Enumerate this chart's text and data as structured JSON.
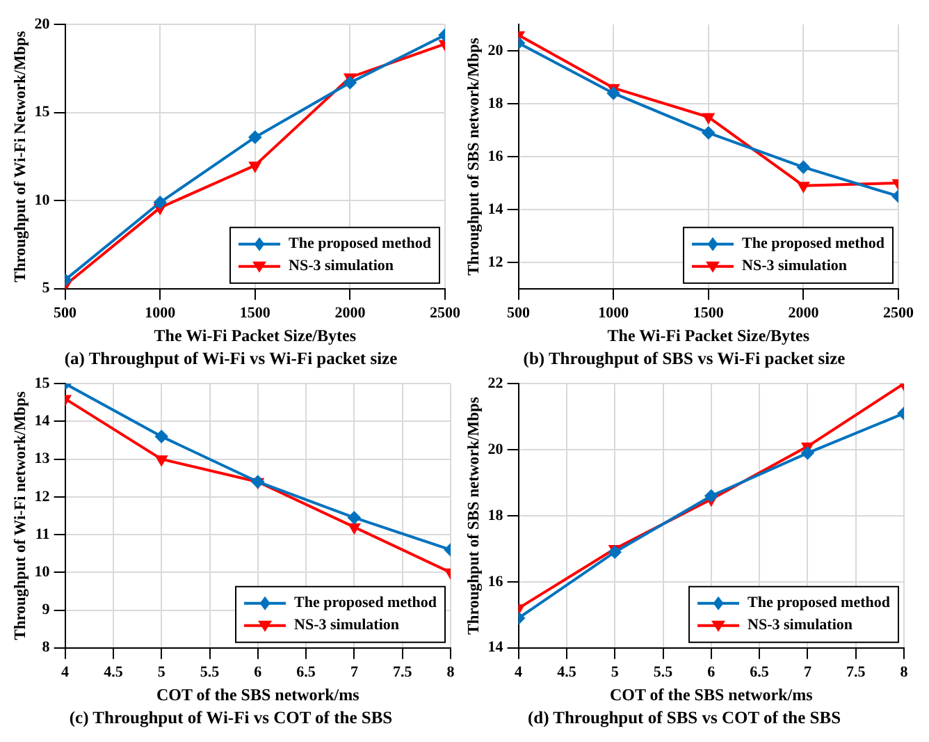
{
  "chart_data": [
    {
      "type": "line",
      "title": "(a) Throughput of Wi-Fi vs Wi-Fi packet size",
      "xlabel": "The Wi-Fi Packet Size/Bytes",
      "ylabel": "Throughput of Wi-Fi Network/Mbps",
      "x": [
        500,
        1000,
        1500,
        2000,
        2500
      ],
      "xlim": [
        500,
        2500
      ],
      "xticks": [
        500,
        1000,
        1500,
        2000,
        2500
      ],
      "ylim": [
        5,
        20
      ],
      "yticks": [
        5,
        10,
        15,
        20
      ],
      "grid": true,
      "legend": "bottom right",
      "line_style": "solid",
      "series": [
        {
          "name": "The proposed method",
          "color": "#0072bd",
          "marker": "diamond",
          "values": [
            5.5,
            9.9,
            13.6,
            16.7,
            19.4
          ]
        },
        {
          "name": "NS-3 simulation",
          "color": "#ff0000",
          "marker": "triangle",
          "values": [
            5.2,
            9.6,
            12.0,
            17.0,
            18.9
          ]
        }
      ]
    },
    {
      "type": "line",
      "title": "(b) Throughput of SBS vs Wi-Fi packet size",
      "xlabel": "The Wi-Fi Packet Size/Bytes",
      "ylabel": "Throughput of SBS network/Mbps",
      "x": [
        500,
        1000,
        1500,
        2000,
        2500
      ],
      "xlim": [
        500,
        2500
      ],
      "xticks": [
        500,
        1000,
        1500,
        2000,
        2500
      ],
      "ylim": [
        11,
        21
      ],
      "yticks": [
        12,
        14,
        16,
        18,
        20
      ],
      "grid": true,
      "legend": "bottom right",
      "line_style": "solid",
      "series": [
        {
          "name": "The proposed method",
          "color": "#0072bd",
          "marker": "diamond",
          "values": [
            20.3,
            18.4,
            16.9,
            15.6,
            14.5
          ]
        },
        {
          "name": "NS-3 simulation",
          "color": "#ff0000",
          "marker": "triangle",
          "values": [
            20.6,
            18.6,
            17.5,
            14.9,
            15.0
          ]
        }
      ]
    },
    {
      "type": "line",
      "title": "(c) Throughput of Wi-Fi vs COT of the SBS",
      "xlabel": "COT of the SBS network/ms",
      "ylabel": "Throughput of Wi-Fi network/Mbps",
      "x": [
        4,
        5,
        6,
        7,
        8
      ],
      "xlim": [
        4,
        8
      ],
      "xticks": [
        4,
        4.5,
        5,
        5.5,
        6,
        6.5,
        7,
        7.5,
        8
      ],
      "ylim": [
        8,
        15
      ],
      "yticks": [
        8,
        9,
        10,
        11,
        12,
        13,
        14,
        15
      ],
      "grid": true,
      "legend": "bottom right",
      "line_style": "solid",
      "series": [
        {
          "name": "The proposed method",
          "color": "#0072bd",
          "marker": "diamond",
          "values": [
            15.0,
            13.6,
            12.4,
            11.45,
            10.6
          ]
        },
        {
          "name": "NS-3 simulation",
          "color": "#ff0000",
          "marker": "triangle",
          "values": [
            14.6,
            13.0,
            12.4,
            11.2,
            10.0
          ]
        }
      ]
    },
    {
      "type": "line",
      "title": "(d) Throughput of SBS vs COT of the SBS",
      "xlabel": "COT of the SBS network/ms",
      "ylabel": "Throughput of SBS network/Mbps",
      "x": [
        4,
        5,
        6,
        7,
        8
      ],
      "xlim": [
        4,
        8
      ],
      "xticks": [
        4,
        4.5,
        5,
        5.5,
        6,
        6.5,
        7,
        7.5,
        8
      ],
      "ylim": [
        14,
        22
      ],
      "yticks": [
        14,
        16,
        18,
        20,
        22
      ],
      "grid": true,
      "legend": "bottom right",
      "line_style": "solid",
      "series": [
        {
          "name": "The proposed method",
          "color": "#0072bd",
          "marker": "diamond",
          "values": [
            14.9,
            16.9,
            18.6,
            19.9,
            21.1
          ]
        },
        {
          "name": "NS-3 simulation",
          "color": "#ff0000",
          "marker": "triangle",
          "values": [
            15.2,
            17.0,
            18.5,
            20.1,
            22.0
          ]
        }
      ]
    }
  ]
}
